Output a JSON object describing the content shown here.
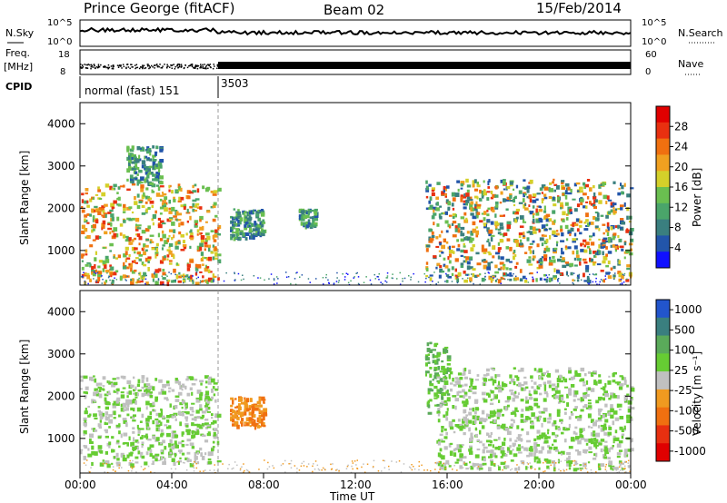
{
  "header": {
    "station": "Prince George (fitACF)",
    "beam": "Beam 02",
    "date": "15/Feb/2014"
  },
  "noise_panel": {
    "left_label": "N.Sky",
    "right_label": "N.Search",
    "left_ticks": [
      "10^5",
      "10^0"
    ],
    "right_ticks": [
      "10^5",
      "10^0"
    ]
  },
  "freq_panel": {
    "left_label_1": "Freq.",
    "left_label_2": "[MHz]",
    "right_label": "Nave",
    "left_ticks": [
      "18",
      "8"
    ],
    "right_ticks": [
      "60",
      "0"
    ]
  },
  "cpid_panel": {
    "label": "CPID",
    "mode1": "normal (fast) 151",
    "mode2": "3503"
  },
  "power_panel": {
    "ylabel": "Slant Range [km]",
    "cbar_label": "Power [dB]"
  },
  "velocity_panel": {
    "ylabel": "Slant Range [km]",
    "cbar_label": "Velocity [m s⁻¹]"
  },
  "xaxis": {
    "label": "Time UT",
    "ticks": [
      "00:00",
      "04:00",
      "08:00",
      "12:00",
      "16:00",
      "20:00",
      "00:00"
    ]
  },
  "chart_data": [
    {
      "type": "heatmap",
      "name": "power",
      "y_range_km": [
        180,
        4500
      ],
      "y_ticks": [
        "1000",
        "2000",
        "3000",
        "4000"
      ],
      "colorbar": {
        "label": "Power [dB]",
        "ticks": [
          "4",
          "8",
          "12",
          "16",
          "20",
          "24",
          "28"
        ],
        "colors": [
          "#1010ff",
          "#2255aa",
          "#3a7f7f",
          "#4aa56a",
          "#6abf50",
          "#d4d02a",
          "#f0a020",
          "#f07010",
          "#e83010",
          "#e00000"
        ]
      },
      "echo_regions": [
        {
          "start": "00:00",
          "end": "06:00",
          "range_km": [
            250,
            2600
          ],
          "power_db": [
            12,
            30
          ]
        },
        {
          "start": "02:00",
          "end": "03:30",
          "range_km": [
            2600,
            3500
          ],
          "power_db": [
            8,
            16
          ]
        },
        {
          "start": "06:30",
          "end": "08:00",
          "range_km": [
            1300,
            2000
          ],
          "power_db": [
            8,
            16
          ]
        },
        {
          "start": "09:30",
          "end": "10:15",
          "range_km": [
            1600,
            2000
          ],
          "power_db": [
            8,
            16
          ]
        },
        {
          "start": "15:00",
          "end": "24:00",
          "range_km": [
            300,
            2700
          ],
          "power_db": [
            8,
            30
          ]
        }
      ]
    },
    {
      "type": "heatmap",
      "name": "velocity",
      "y_range_km": [
        180,
        4500
      ],
      "y_ticks": [
        "1000",
        "2000",
        "3000",
        "4000"
      ],
      "colorbar": {
        "label": "Velocity [m s⁻¹]",
        "ticks": [
          "1000",
          "500",
          "100",
          "25",
          "-25",
          "-100",
          "-500",
          "-1000"
        ],
        "colors": [
          "#2255cc",
          "#3a7f7f",
          "#5aaa5a",
          "#66cc33",
          "#c0c0c0",
          "#f09a20",
          "#f07010",
          "#e83010",
          "#e00000"
        ]
      },
      "echo_regions": [
        {
          "start": "00:00",
          "end": "06:00",
          "range_km": [
            400,
            2500
          ],
          "velocity": [
            -25,
            25
          ]
        },
        {
          "start": "06:30",
          "end": "08:00",
          "range_km": [
            1300,
            2000
          ],
          "velocity": [
            -500,
            -100
          ]
        },
        {
          "start": "15:00",
          "end": "16:00",
          "range_km": [
            1600,
            3300
          ],
          "velocity": [
            25,
            100
          ]
        },
        {
          "start": "15:30",
          "end": "24:00",
          "range_km": [
            300,
            2700
          ],
          "velocity": [
            -25,
            25
          ]
        }
      ]
    }
  ]
}
